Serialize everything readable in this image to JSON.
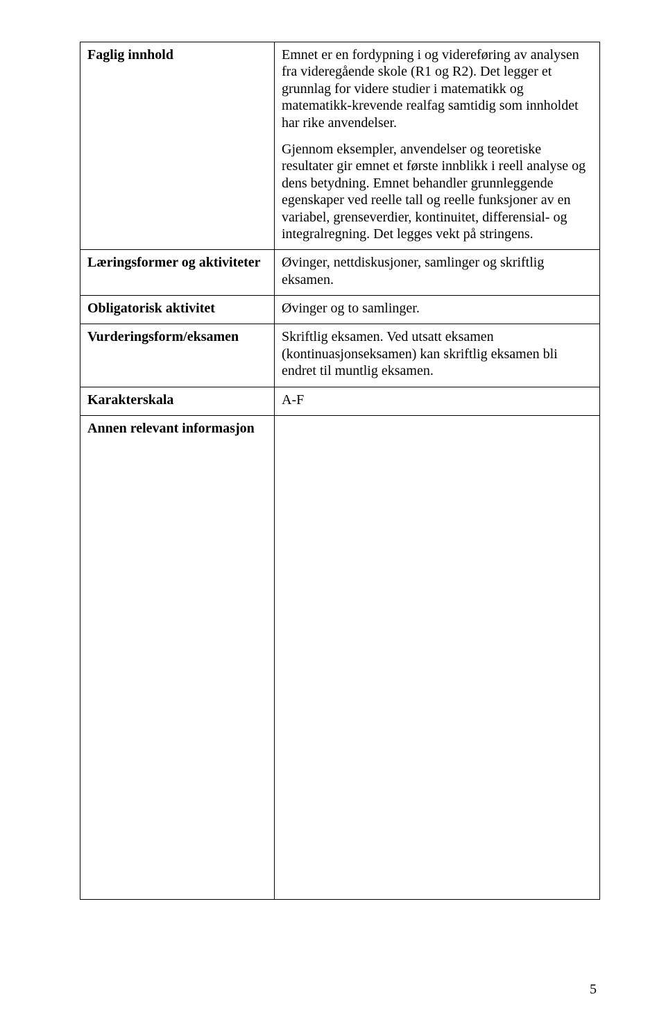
{
  "rows": [
    {
      "label": "Faglig innhold",
      "paragraphs": [
        "Emnet er en fordypning i og videreføring av analysen fra videregående skole (R1 og R2). Det legger et grunnlag for videre studier i matematikk og matematikk-krevende realfag samtidig som innholdet har rike anvendelser.",
        "Gjennom eksempler, anvendelser og teoretiske resultater gir emnet et første innblikk i reell analyse og dens betydning. Emnet behandler grunnleggende egenskaper ved reelle tall og reelle funksjoner av en variabel, grenseverdier, kontinuitet, differensial- og integralregning. Det legges vekt på stringens."
      ]
    },
    {
      "label": "Læringsformer og aktiviteter",
      "value": "Øvinger, nettdiskusjoner, samlinger og skriftlig eksamen."
    },
    {
      "label": "Obligatorisk aktivitet",
      "value": "Øvinger og to samlinger."
    },
    {
      "label": "Vurderingsform/eksamen",
      "value": "Skriftlig eksamen. Ved utsatt eksamen (kontinuasjonseksamen) kan skriftlig eksamen bli endret til muntlig eksamen."
    },
    {
      "label": "Karakterskala",
      "value": "A-F"
    },
    {
      "label": "Annen relevant informasjon",
      "value": ""
    }
  ],
  "page_number": "5"
}
